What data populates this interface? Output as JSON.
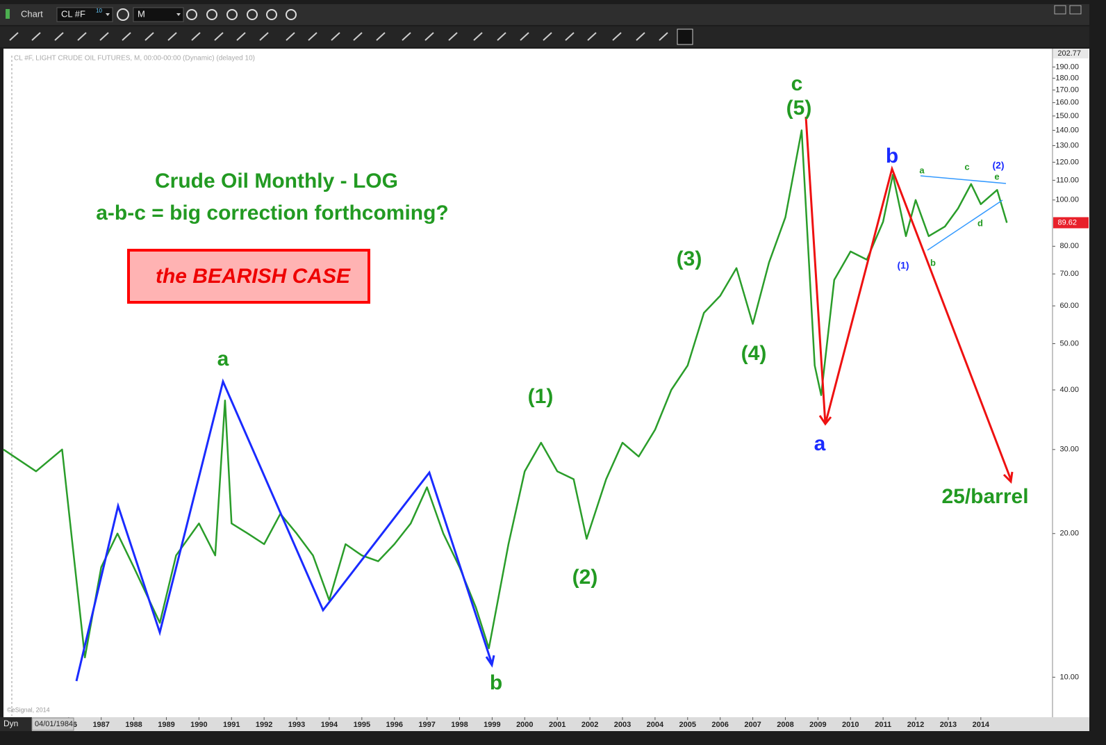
{
  "window": {
    "title": "Chart",
    "symbol": "CL #F",
    "symbol_badge": "10",
    "interval": "M",
    "dyn": "Dyn",
    "start_date": "04/01/1984",
    "copyright": "©eSignal, 2014"
  },
  "chart_data": {
    "type": "line",
    "header": "CL #F, LIGHT CRUDE OIL FUTURES, M, 00:00-00:00 (Dynamic) (delayed 10)",
    "title": "Crude Oil Monthly - LOG",
    "subtitle": "a-b-c = big correction forthcoming?",
    "box_label": "the BEARISH CASE",
    "target_label": "25/barrel",
    "wave_labels": [
      "a",
      "b",
      "(1)",
      "(2)",
      "(3)",
      "(4)",
      "c",
      "(5)",
      "a",
      "b",
      "a",
      "c",
      "(2)",
      "e",
      "d",
      "b",
      "(1)"
    ],
    "log_scale": true,
    "color": "#2a9d2a",
    "x": [
      1984.0,
      1985.0,
      1985.8,
      1986.5,
      1987.0,
      1987.5,
      1988.0,
      1988.8,
      1989.3,
      1990.0,
      1990.5,
      1990.8,
      1991.0,
      1991.5,
      1992.0,
      1992.5,
      1993.0,
      1993.5,
      1994.0,
      1994.5,
      1995.0,
      1995.5,
      1996.0,
      1996.5,
      1997.0,
      1997.5,
      1998.0,
      1998.5,
      1998.9,
      1999.5,
      2000.0,
      2000.5,
      2001.0,
      2001.5,
      2001.9,
      2002.5,
      2003.0,
      2003.5,
      2004.0,
      2004.5,
      2005.0,
      2005.5,
      2006.0,
      2006.5,
      2007.0,
      2007.5,
      2008.0,
      2008.5,
      2008.9,
      2009.1,
      2009.5,
      2010.0,
      2010.5,
      2011.0,
      2011.3,
      2011.7,
      2012.0,
      2012.4,
      2012.9,
      2013.3,
      2013.7,
      2014.0,
      2014.5,
      2014.8
    ],
    "values": [
      30,
      27,
      30,
      11,
      17,
      20,
      17,
      13,
      18,
      21,
      18,
      38,
      21,
      20,
      19,
      22,
      20,
      18,
      14.5,
      19,
      18,
      17.5,
      19,
      21,
      25,
      20,
      17,
      14,
      11.5,
      19,
      27,
      31,
      27,
      26,
      19.5,
      26,
      31,
      29,
      33,
      40,
      45,
      58,
      63,
      72,
      55,
      74,
      92,
      140,
      45,
      39,
      68,
      78,
      75,
      90,
      113,
      84,
      100,
      84,
      88,
      96,
      108,
      98,
      105,
      89.62
    ],
    "xlim": [
      1984,
      2016.2
    ],
    "xticks": [
      1986,
      1987,
      1988,
      1989,
      1990,
      1991,
      1992,
      1993,
      1994,
      1995,
      1996,
      1997,
      1998,
      1999,
      2000,
      2001,
      2002,
      2003,
      2004,
      2005,
      2006,
      2007,
      2008,
      2009,
      2010,
      2011,
      2012,
      2013,
      2014
    ],
    "ylim": [
      8.3,
      202.77
    ],
    "yticks": [
      {
        "value": 10,
        "label": "10.00"
      },
      {
        "value": 20,
        "label": "20.00"
      },
      {
        "value": 30,
        "label": "30.00"
      },
      {
        "value": 40,
        "label": "40.00"
      },
      {
        "value": 50,
        "label": "50.00"
      },
      {
        "value": 60,
        "label": "60.00"
      },
      {
        "value": 70,
        "label": "70.00"
      },
      {
        "value": 80,
        "label": "80.00"
      },
      {
        "value": 100,
        "label": "100.00"
      },
      {
        "value": 110,
        "label": "110.00"
      },
      {
        "value": 120,
        "label": "120.00"
      },
      {
        "value": 130,
        "label": "130.00"
      },
      {
        "value": 140,
        "label": "140.00"
      },
      {
        "value": 150,
        "label": "150.00"
      },
      {
        "value": 160,
        "label": "160.00"
      },
      {
        "value": 170,
        "label": "170.00"
      },
      {
        "value": 180,
        "label": "180.00"
      },
      {
        "value": 190,
        "label": "190.00"
      }
    ]
  }
}
